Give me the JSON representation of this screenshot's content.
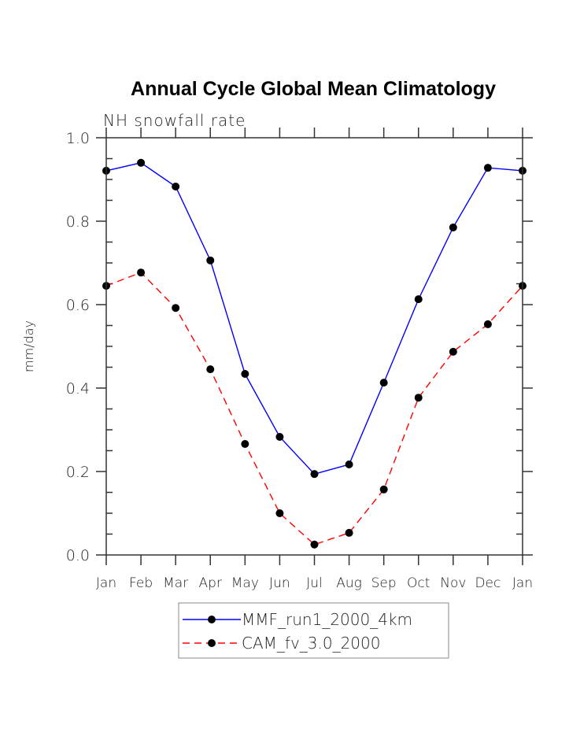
{
  "chart_data": {
    "type": "line",
    "title": "Annual Cycle Global Mean Climatology",
    "subtitle": "NH snowfall rate",
    "xlabel": "",
    "ylabel": "mm/day",
    "categories": [
      "Jan",
      "Feb",
      "Mar",
      "Apr",
      "May",
      "Jun",
      "Jul",
      "Aug",
      "Sep",
      "Oct",
      "Nov",
      "Dec",
      "Jan"
    ],
    "ylim": [
      0.0,
      1.0
    ],
    "yticks": [
      "0.0",
      "0.2",
      "0.4",
      "0.6",
      "0.8",
      "1.0"
    ],
    "ytick_values": [
      0.0,
      0.2,
      0.4,
      0.6,
      0.8,
      1.0
    ],
    "y_minor_step": 0.05,
    "grid": false,
    "legend_position": "bottom-center",
    "series": [
      {
        "name": "MMF_run1_2000_4km",
        "color": "#0000ff",
        "line_style": "solid",
        "marker": "filled-circle",
        "values": [
          0.921,
          0.94,
          0.883,
          0.706,
          0.434,
          0.283,
          0.194,
          0.217,
          0.413,
          0.613,
          0.785,
          0.928,
          0.921
        ]
      },
      {
        "name": "CAM_fv_3.0_2000",
        "color": "#ff0000",
        "line_style": "dashed",
        "marker": "filled-circle",
        "values": [
          0.645,
          0.677,
          0.592,
          0.445,
          0.266,
          0.1,
          0.025,
          0.053,
          0.157,
          0.377,
          0.487,
          0.553,
          0.645
        ]
      }
    ]
  }
}
